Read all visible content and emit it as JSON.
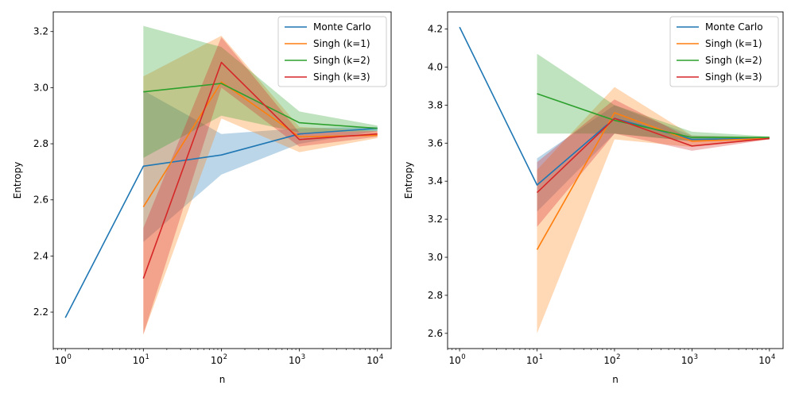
{
  "chart_data": [
    {
      "type": "line",
      "xscale": "log",
      "xlabel": "n",
      "ylabel": "Entropy",
      "xlim": [
        0.7,
        15000
      ],
      "ylim": [
        2.07,
        3.27
      ],
      "xticks": [
        1,
        10,
        100,
        1000,
        10000
      ],
      "xtick_labels": [
        {
          "base": "10",
          "exp": "0"
        },
        {
          "base": "10",
          "exp": "1"
        },
        {
          "base": "10",
          "exp": "2"
        },
        {
          "base": "10",
          "exp": "3"
        },
        {
          "base": "10",
          "exp": "4"
        }
      ],
      "yticks": [
        2.2,
        2.4,
        2.6,
        2.8,
        3.0,
        3.2
      ],
      "ytick_labels": [
        "2.2",
        "2.4",
        "2.6",
        "2.8",
        "3.0",
        "3.2"
      ],
      "grid": false,
      "legend_position": "top-right",
      "series": [
        {
          "name": "Monte Carlo",
          "color": "#1f77b4",
          "x": [
            1,
            10,
            100,
            1000,
            10000
          ],
          "y": [
            2.18,
            2.72,
            2.76,
            2.835,
            2.855
          ],
          "band_x": [
            10,
            100,
            1000,
            10000
          ],
          "band_low": [
            2.45,
            2.69,
            2.8,
            2.845
          ],
          "band_high": [
            2.99,
            2.835,
            2.855,
            2.86
          ]
        },
        {
          "name": "Singh (k=1)",
          "color": "#ff7f0e",
          "x": [
            10,
            100,
            1000,
            10000
          ],
          "y": [
            2.575,
            3.02,
            2.825,
            2.83
          ],
          "band_x": [
            10,
            100,
            1000,
            10000
          ],
          "band_low": [
            2.12,
            2.89,
            2.77,
            2.82
          ],
          "band_high": [
            3.04,
            3.185,
            2.86,
            2.845
          ]
        },
        {
          "name": "Singh (k=2)",
          "color": "#2ca02c",
          "x": [
            10,
            100,
            1000,
            10000
          ],
          "y": [
            2.985,
            3.015,
            2.875,
            2.855
          ],
          "band_x": [
            10,
            100,
            1000,
            10000
          ],
          "band_low": [
            2.75,
            2.9,
            2.84,
            2.845
          ],
          "band_high": [
            3.22,
            3.145,
            2.915,
            2.865
          ]
        },
        {
          "name": "Singh (k=3)",
          "color": "#d62728",
          "x": [
            10,
            100,
            1000,
            10000
          ],
          "y": [
            2.32,
            3.09,
            2.815,
            2.835
          ],
          "band_x": [
            10,
            100,
            1000,
            10000
          ],
          "band_low": [
            2.12,
            3.0,
            2.79,
            2.825
          ],
          "band_high": [
            2.5,
            3.18,
            2.84,
            2.845
          ]
        }
      ]
    },
    {
      "type": "line",
      "xscale": "log",
      "xlabel": "n",
      "ylabel": "Entropy",
      "xlim": [
        0.7,
        15000
      ],
      "ylim": [
        2.52,
        4.29
      ],
      "xticks": [
        1,
        10,
        100,
        1000,
        10000
      ],
      "xtick_labels": [
        {
          "base": "10",
          "exp": "0"
        },
        {
          "base": "10",
          "exp": "1"
        },
        {
          "base": "10",
          "exp": "2"
        },
        {
          "base": "10",
          "exp": "3"
        },
        {
          "base": "10",
          "exp": "4"
        }
      ],
      "yticks": [
        2.6,
        2.8,
        3.0,
        3.2,
        3.4,
        3.6,
        3.8,
        4.0,
        4.2
      ],
      "ytick_labels": [
        "2.6",
        "2.8",
        "3.0",
        "3.2",
        "3.4",
        "3.6",
        "3.8",
        "4.0",
        "4.2"
      ],
      "grid": false,
      "legend_position": "top-right",
      "series": [
        {
          "name": "Monte Carlo",
          "color": "#1f77b4",
          "x": [
            1,
            10,
            100,
            1000,
            10000
          ],
          "y": [
            4.21,
            3.38,
            3.73,
            3.62,
            3.625
          ],
          "band_x": [
            10,
            100,
            1000,
            10000
          ],
          "band_low": [
            3.24,
            3.65,
            3.61,
            3.62
          ],
          "band_high": [
            3.52,
            3.8,
            3.64,
            3.63
          ]
        },
        {
          "name": "Singh (k=1)",
          "color": "#ff7f0e",
          "x": [
            10,
            100,
            1000,
            10000
          ],
          "y": [
            3.04,
            3.76,
            3.61,
            3.625
          ],
          "band_x": [
            10,
            100,
            1000,
            10000
          ],
          "band_low": [
            2.6,
            3.62,
            3.58,
            3.62
          ],
          "band_high": [
            3.46,
            3.895,
            3.64,
            3.63
          ]
        },
        {
          "name": "Singh (k=2)",
          "color": "#2ca02c",
          "x": [
            10,
            100,
            1000,
            10000
          ],
          "y": [
            3.86,
            3.72,
            3.63,
            3.63
          ],
          "band_x": [
            10,
            100,
            1000,
            10000
          ],
          "band_low": [
            3.65,
            3.65,
            3.61,
            3.62
          ],
          "band_high": [
            4.07,
            3.8,
            3.66,
            3.635
          ]
        },
        {
          "name": "Singh (k=3)",
          "color": "#d62728",
          "x": [
            10,
            100,
            1000,
            10000
          ],
          "y": [
            3.34,
            3.73,
            3.585,
            3.625
          ],
          "band_x": [
            10,
            100,
            1000,
            10000
          ],
          "band_low": [
            3.16,
            3.65,
            3.56,
            3.62
          ],
          "band_high": [
            3.5,
            3.83,
            3.62,
            3.63
          ]
        }
      ]
    }
  ]
}
